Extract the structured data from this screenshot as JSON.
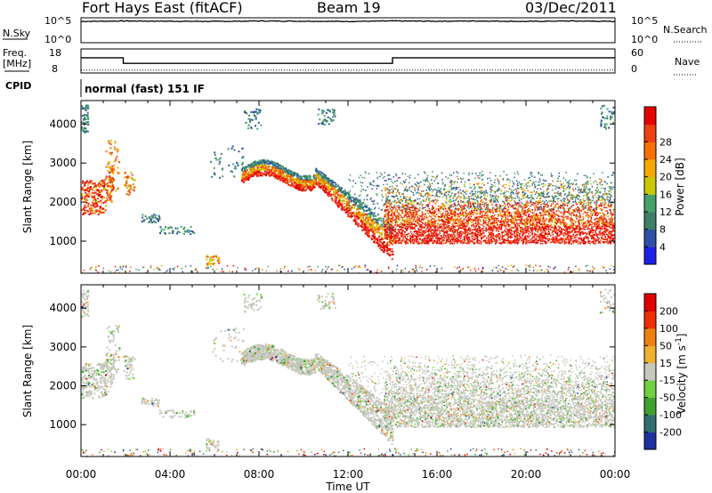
{
  "header": {
    "station": "Fort Hays East (fitACF)",
    "beam": "Beam 19",
    "date": "03/Dec/2011"
  },
  "left_labels": {
    "nsky": "N.Sky",
    "freq_line1": "Freq.",
    "freq_line2": "[MHz]",
    "cpid": "CPID"
  },
  "right_labels": {
    "nsearch": "N.Search",
    "nave": "Nave"
  },
  "cpid_text": "normal (fast) 151 IF",
  "noise_ticks_left": [
    "10^5",
    "10^0"
  ],
  "noise_ticks_right": [
    "10^5",
    "10^0"
  ],
  "freq_ticks_left": [
    "18",
    "8"
  ],
  "nave_ticks_right": [
    "60",
    "0"
  ],
  "chart_data": [
    {
      "type": "line",
      "panel": "noise",
      "title": "",
      "series": [
        {
          "name": "N.Sky",
          "style": "solid",
          "x_hours": [
            0,
            2,
            4,
            6,
            8,
            10,
            12,
            14,
            16,
            18,
            20,
            22,
            24
          ],
          "values_log10": [
            4.6,
            4.7,
            4.65,
            4.6,
            4.7,
            4.65,
            4.6,
            4.7,
            4.65,
            4.7,
            4.6,
            4.7,
            4.6
          ]
        }
      ]
    },
    {
      "type": "line",
      "panel": "frequency",
      "series": [
        {
          "name": "Freq.",
          "style": "solid",
          "x_hours": [
            0,
            1.9,
            1.9,
            14.0,
            14.0,
            24
          ],
          "values": [
            14.5,
            14.5,
            11.0,
            11.0,
            14.5,
            14.5
          ]
        },
        {
          "name": "Nave",
          "style": "dotted",
          "x_hours": [
            0,
            24
          ],
          "values": [
            10,
            10
          ]
        }
      ]
    },
    {
      "type": "heatmap",
      "panel": "power",
      "xlabel": "",
      "ylabel": "Slant Range [km]",
      "xlim_hours": [
        0,
        24
      ],
      "ylim_km": [
        180,
        4600
      ],
      "yticks": [
        1000,
        2000,
        3000,
        4000
      ],
      "colorbar": {
        "label": "Power [dB]",
        "ticks": [
          4,
          8,
          12,
          16,
          20,
          24,
          28
        ],
        "colors": [
          "#1f1fe6",
          "#2f4fa8",
          "#3e7f6a",
          "#45a26a",
          "#c8c800",
          "#f6a800",
          "#f77000",
          "#ef4010",
          "#e60000"
        ]
      }
    },
    {
      "type": "heatmap",
      "panel": "velocity",
      "xlabel": "Time UT",
      "ylabel": "Slant Range [km]",
      "xlim_hours": [
        0,
        24
      ],
      "ylim_km": [
        180,
        4600
      ],
      "yticks": [
        1000,
        2000,
        3000,
        4000
      ],
      "xtick_labels": [
        "00:00",
        "04:00",
        "08:00",
        "12:00",
        "16:00",
        "20:00",
        "00:00"
      ],
      "colorbar": {
        "label": "Velocity [m s^-1]",
        "ticks": [
          200,
          100,
          50,
          15,
          -15,
          -50,
          -100,
          -200
        ],
        "colors": [
          "#2030a0",
          "#2f6f6f",
          "#40a030",
          "#70d040",
          "#c8c8c0",
          "#f0b030",
          "#f08010",
          "#f03000",
          "#e00000"
        ]
      }
    }
  ]
}
